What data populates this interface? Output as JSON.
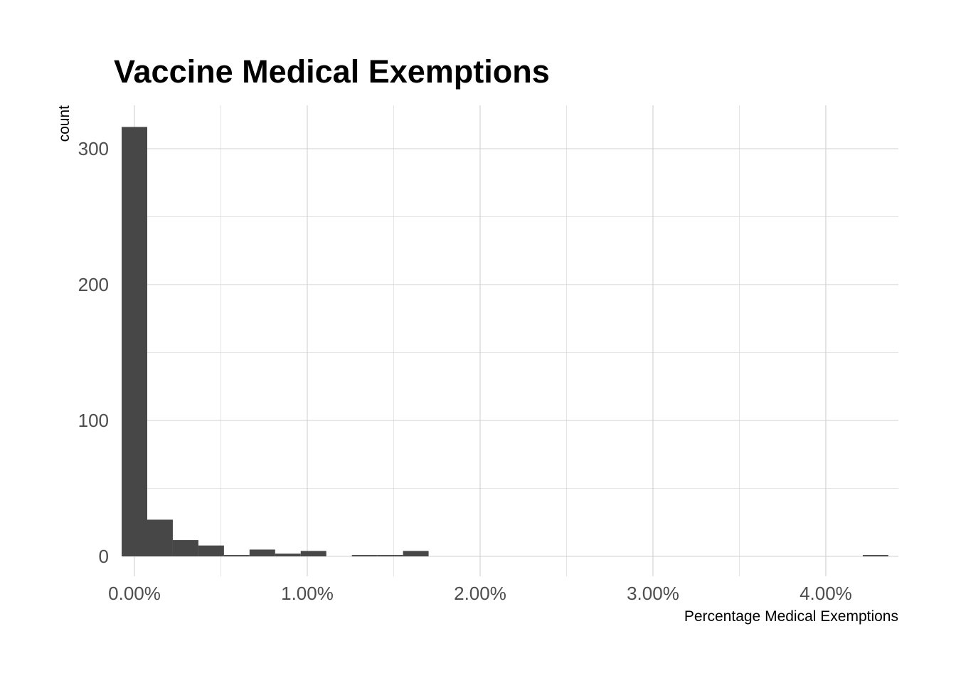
{
  "chart_data": {
    "type": "histogram",
    "title": "Vaccine Medical Exemptions",
    "xlabel": "Percentage Medical Exemptions",
    "ylabel": "count",
    "xlim": [
      -0.07,
      4.42
    ],
    "ylim": [
      0,
      330
    ],
    "x_ticks": [
      {
        "value": 0,
        "label": "0.00%"
      },
      {
        "value": 1,
        "label": "1.00%"
      },
      {
        "value": 2,
        "label": "2.00%"
      },
      {
        "value": 3,
        "label": "3.00%"
      },
      {
        "value": 4,
        "label": "4.00%"
      }
    ],
    "y_ticks": [
      {
        "value": 0,
        "label": "0"
      },
      {
        "value": 100,
        "label": "100"
      },
      {
        "value": 200,
        "label": "200"
      },
      {
        "value": 300,
        "label": "300"
      }
    ],
    "x_minor_ticks": [
      0.5,
      1.5,
      2.5,
      3.5
    ],
    "y_minor_ticks": [
      50,
      150,
      250
    ],
    "grid": true,
    "bar_color": "#474747",
    "bins": [
      {
        "x0": -0.074,
        "x1": 0.074,
        "count": 316
      },
      {
        "x0": 0.074,
        "x1": 0.222,
        "count": 27
      },
      {
        "x0": 0.222,
        "x1": 0.37,
        "count": 12
      },
      {
        "x0": 0.37,
        "x1": 0.518,
        "count": 8
      },
      {
        "x0": 0.518,
        "x1": 0.666,
        "count": 1
      },
      {
        "x0": 0.666,
        "x1": 0.814,
        "count": 5
      },
      {
        "x0": 0.814,
        "x1": 0.962,
        "count": 2
      },
      {
        "x0": 0.962,
        "x1": 1.11,
        "count": 4
      },
      {
        "x0": 1.11,
        "x1": 1.258,
        "count": 0
      },
      {
        "x0": 1.258,
        "x1": 1.406,
        "count": 1
      },
      {
        "x0": 1.406,
        "x1": 1.554,
        "count": 1
      },
      {
        "x0": 1.554,
        "x1": 1.702,
        "count": 4
      },
      {
        "x0": 4.214,
        "x1": 4.362,
        "count": 1
      }
    ]
  }
}
